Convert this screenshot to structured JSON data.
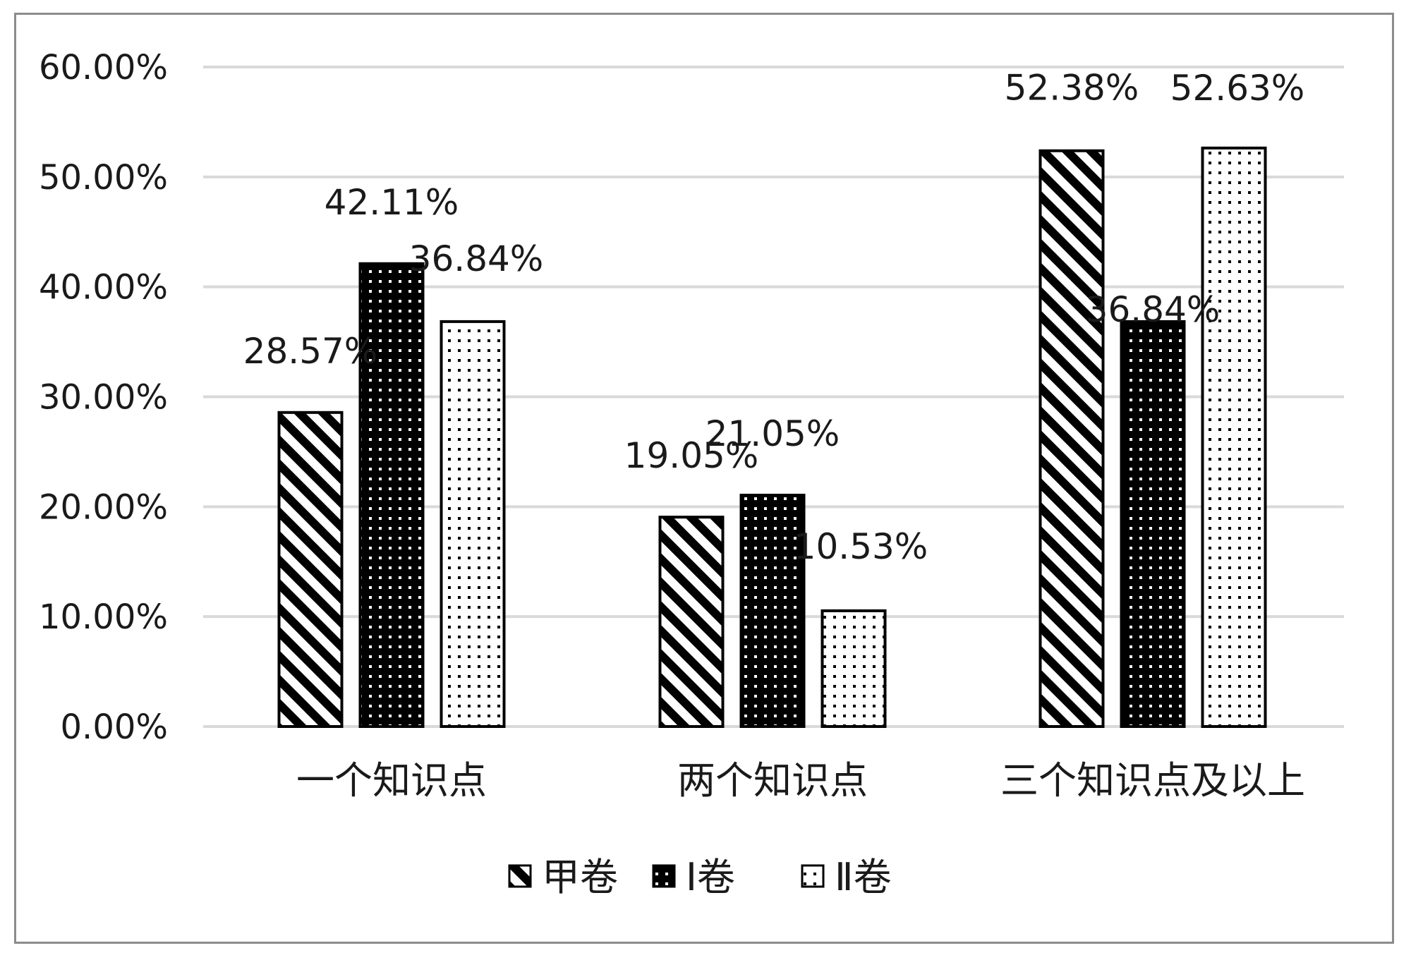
{
  "chart_data": {
    "type": "bar",
    "categories": [
      "一个知识点",
      "两个知识点",
      "三个知识点及以上"
    ],
    "series": [
      {
        "name": "甲卷",
        "values": [
          28.57,
          19.05,
          52.38
        ],
        "pattern": "diagonal-stripes"
      },
      {
        "name": "Ⅰ卷",
        "values": [
          42.11,
          21.05,
          36.84
        ],
        "pattern": "dark-dots"
      },
      {
        "name": "Ⅱ卷",
        "values": [
          36.84,
          10.53,
          52.63
        ],
        "pattern": "light-dots"
      }
    ],
    "data_labels": [
      [
        "28.57%",
        "19.05%",
        "52.38%"
      ],
      [
        "42.11%",
        "21.05%",
        "36.84%"
      ],
      [
        "36.84%",
        "10.53%",
        "52.63%"
      ]
    ],
    "y_ticks": [
      "0.00%",
      "10.00%",
      "20.00%",
      "30.00%",
      "40.00%",
      "50.00%",
      "60.00%"
    ],
    "ylim": [
      0,
      60
    ],
    "grid": true,
    "legend_position": "bottom",
    "colors": {
      "bar_stroke": "#000000",
      "gridline": "#d9d9d9",
      "frame": "#8c8c8c"
    }
  }
}
